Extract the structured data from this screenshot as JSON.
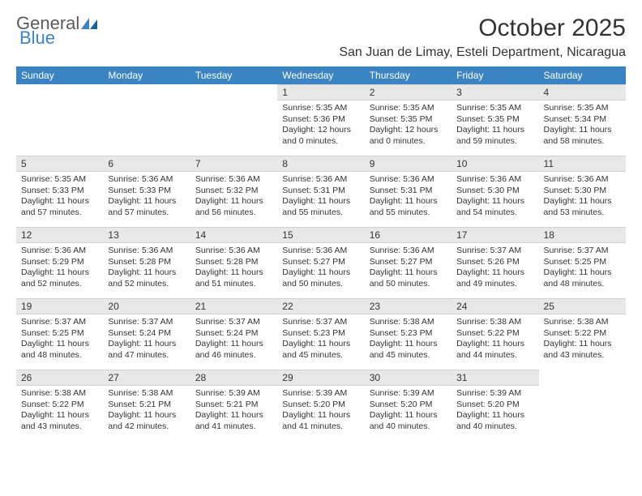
{
  "logo": {
    "text1": "General",
    "text2": "Blue"
  },
  "title": "October 2025",
  "location": "San Juan de Limay, Esteli Department, Nicaragua",
  "header_bg": "#3b84c4",
  "header_fg": "#ffffff",
  "daynum_bg": "#e8e8e8",
  "days": [
    "Sunday",
    "Monday",
    "Tuesday",
    "Wednesday",
    "Thursday",
    "Friday",
    "Saturday"
  ],
  "weeks": [
    [
      null,
      null,
      null,
      {
        "n": "1",
        "sr": "5:35 AM",
        "ss": "5:36 PM",
        "dl": "12 hours and 0 minutes."
      },
      {
        "n": "2",
        "sr": "5:35 AM",
        "ss": "5:35 PM",
        "dl": "12 hours and 0 minutes."
      },
      {
        "n": "3",
        "sr": "5:35 AM",
        "ss": "5:35 PM",
        "dl": "11 hours and 59 minutes."
      },
      {
        "n": "4",
        "sr": "5:35 AM",
        "ss": "5:34 PM",
        "dl": "11 hours and 58 minutes."
      }
    ],
    [
      {
        "n": "5",
        "sr": "5:35 AM",
        "ss": "5:33 PM",
        "dl": "11 hours and 57 minutes."
      },
      {
        "n": "6",
        "sr": "5:36 AM",
        "ss": "5:33 PM",
        "dl": "11 hours and 57 minutes."
      },
      {
        "n": "7",
        "sr": "5:36 AM",
        "ss": "5:32 PM",
        "dl": "11 hours and 56 minutes."
      },
      {
        "n": "8",
        "sr": "5:36 AM",
        "ss": "5:31 PM",
        "dl": "11 hours and 55 minutes."
      },
      {
        "n": "9",
        "sr": "5:36 AM",
        "ss": "5:31 PM",
        "dl": "11 hours and 55 minutes."
      },
      {
        "n": "10",
        "sr": "5:36 AM",
        "ss": "5:30 PM",
        "dl": "11 hours and 54 minutes."
      },
      {
        "n": "11",
        "sr": "5:36 AM",
        "ss": "5:30 PM",
        "dl": "11 hours and 53 minutes."
      }
    ],
    [
      {
        "n": "12",
        "sr": "5:36 AM",
        "ss": "5:29 PM",
        "dl": "11 hours and 52 minutes."
      },
      {
        "n": "13",
        "sr": "5:36 AM",
        "ss": "5:28 PM",
        "dl": "11 hours and 52 minutes."
      },
      {
        "n": "14",
        "sr": "5:36 AM",
        "ss": "5:28 PM",
        "dl": "11 hours and 51 minutes."
      },
      {
        "n": "15",
        "sr": "5:36 AM",
        "ss": "5:27 PM",
        "dl": "11 hours and 50 minutes."
      },
      {
        "n": "16",
        "sr": "5:36 AM",
        "ss": "5:27 PM",
        "dl": "11 hours and 50 minutes."
      },
      {
        "n": "17",
        "sr": "5:37 AM",
        "ss": "5:26 PM",
        "dl": "11 hours and 49 minutes."
      },
      {
        "n": "18",
        "sr": "5:37 AM",
        "ss": "5:25 PM",
        "dl": "11 hours and 48 minutes."
      }
    ],
    [
      {
        "n": "19",
        "sr": "5:37 AM",
        "ss": "5:25 PM",
        "dl": "11 hours and 48 minutes."
      },
      {
        "n": "20",
        "sr": "5:37 AM",
        "ss": "5:24 PM",
        "dl": "11 hours and 47 minutes."
      },
      {
        "n": "21",
        "sr": "5:37 AM",
        "ss": "5:24 PM",
        "dl": "11 hours and 46 minutes."
      },
      {
        "n": "22",
        "sr": "5:37 AM",
        "ss": "5:23 PM",
        "dl": "11 hours and 45 minutes."
      },
      {
        "n": "23",
        "sr": "5:38 AM",
        "ss": "5:23 PM",
        "dl": "11 hours and 45 minutes."
      },
      {
        "n": "24",
        "sr": "5:38 AM",
        "ss": "5:22 PM",
        "dl": "11 hours and 44 minutes."
      },
      {
        "n": "25",
        "sr": "5:38 AM",
        "ss": "5:22 PM",
        "dl": "11 hours and 43 minutes."
      }
    ],
    [
      {
        "n": "26",
        "sr": "5:38 AM",
        "ss": "5:22 PM",
        "dl": "11 hours and 43 minutes."
      },
      {
        "n": "27",
        "sr": "5:38 AM",
        "ss": "5:21 PM",
        "dl": "11 hours and 42 minutes."
      },
      {
        "n": "28",
        "sr": "5:39 AM",
        "ss": "5:21 PM",
        "dl": "11 hours and 41 minutes."
      },
      {
        "n": "29",
        "sr": "5:39 AM",
        "ss": "5:20 PM",
        "dl": "11 hours and 41 minutes."
      },
      {
        "n": "30",
        "sr": "5:39 AM",
        "ss": "5:20 PM",
        "dl": "11 hours and 40 minutes."
      },
      {
        "n": "31",
        "sr": "5:39 AM",
        "ss": "5:20 PM",
        "dl": "11 hours and 40 minutes."
      },
      null
    ]
  ],
  "labels": {
    "sunrise": "Sunrise:",
    "sunset": "Sunset:",
    "daylight": "Daylight:"
  }
}
